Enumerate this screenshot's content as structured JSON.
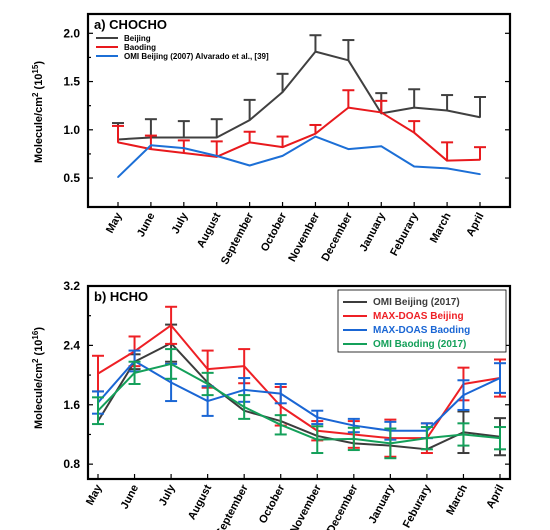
{
  "chart_data": [
    {
      "type": "line",
      "title": "a) CHOCHO",
      "ylabel": "Molecule/cm^2 (10^15)",
      "ylim": [
        0.2,
        2.2
      ],
      "yticks": [
        "0.5",
        "1.0",
        "1.5",
        "2.0"
      ],
      "categories": [
        "May",
        "June",
        "July",
        "August",
        "September",
        "October",
        "November",
        "December",
        "January",
        "Feburary",
        "March",
        "April"
      ],
      "legend_position": "top-left",
      "series": [
        {
          "name": "Beijing",
          "color": "#404040",
          "values": [
            0.9,
            0.92,
            0.92,
            0.92,
            1.1,
            1.39,
            1.81,
            1.72,
            1.17,
            1.23,
            1.2,
            1.13
          ],
          "errors": [
            0.17,
            0.19,
            0.17,
            0.19,
            0.21,
            0.19,
            0.17,
            0.21,
            0.21,
            0.19,
            0.16,
            0.21
          ]
        },
        {
          "name": "Baoding",
          "color": "#e8191d",
          "values": [
            0.87,
            0.8,
            0.76,
            0.72,
            0.87,
            0.82,
            0.96,
            1.23,
            1.18,
            0.97,
            0.68,
            0.69
          ],
          "errors": [
            0.17,
            0.14,
            0.13,
            0.16,
            0.11,
            0.11,
            0.09,
            0.18,
            0.12,
            0.12,
            0.19,
            0.13
          ]
        },
        {
          "name": "OMI Beijing (2007) Alvarado et al., [39]",
          "color": "#1c6fd6",
          "values": [
            0.51,
            0.84,
            0.81,
            0.73,
            0.63,
            0.73,
            0.93,
            0.8,
            0.83,
            0.62,
            0.6,
            0.54
          ]
        }
      ]
    },
    {
      "type": "line",
      "title": "b) HCHO",
      "ylabel": "Molecule/cm^2 (10^16)",
      "ylim": [
        0.6,
        3.2
      ],
      "yticks": [
        "0.8",
        "1.6",
        "2.4",
        "3.2"
      ],
      "categories": [
        "May",
        "June",
        "July",
        "August",
        "September",
        "October",
        "November",
        "December",
        "January",
        "Feburary",
        "March",
        "April"
      ],
      "legend_position": "top-right",
      "series": [
        {
          "name": "OMI Beijing (2017)",
          "color": "#3c3c3c",
          "values": [
            1.38,
            2.18,
            2.43,
            1.9,
            1.52,
            1.38,
            1.18,
            1.08,
            1.05,
            1.0,
            1.23,
            1.17
          ],
          "errors": [
            0.0,
            0.1,
            0.25,
            0.0,
            0.0,
            0.0,
            0.0,
            0.0,
            0.0,
            0.0,
            0.28,
            0.25
          ]
        },
        {
          "name": "MAX-DOAS Beijing",
          "color": "#ee2025",
          "values": [
            2.02,
            2.32,
            2.67,
            2.08,
            2.12,
            1.58,
            1.25,
            1.2,
            1.15,
            1.15,
            1.88,
            1.96
          ],
          "errors": [
            0.24,
            0.2,
            0.25,
            0.25,
            0.23,
            0.26,
            0.13,
            0.18,
            0.25,
            0.2,
            0.22,
            0.25
          ]
        },
        {
          "name": "MAX-DOAS Baoding",
          "color": "#1a66d4",
          "values": [
            1.63,
            2.19,
            1.9,
            1.65,
            1.8,
            1.75,
            1.43,
            1.32,
            1.25,
            1.25,
            1.73,
            1.96
          ],
          "errors": [
            0.15,
            0.14,
            0.25,
            0.2,
            0.16,
            0.13,
            0.09,
            0.09,
            0.12,
            0.1,
            0.2,
            0.2
          ]
        },
        {
          "name": "OMI Baoding (2017)",
          "color": "#14a05a",
          "values": [
            1.52,
            2.03,
            2.15,
            1.88,
            1.57,
            1.33,
            1.13,
            1.14,
            1.08,
            1.15,
            1.2,
            1.15
          ],
          "errors": [
            0.18,
            0.15,
            0.2,
            0.15,
            0.16,
            0.13,
            0.18,
            0.15,
            0.2,
            0.15,
            0.15,
            0.15
          ]
        }
      ]
    }
  ]
}
